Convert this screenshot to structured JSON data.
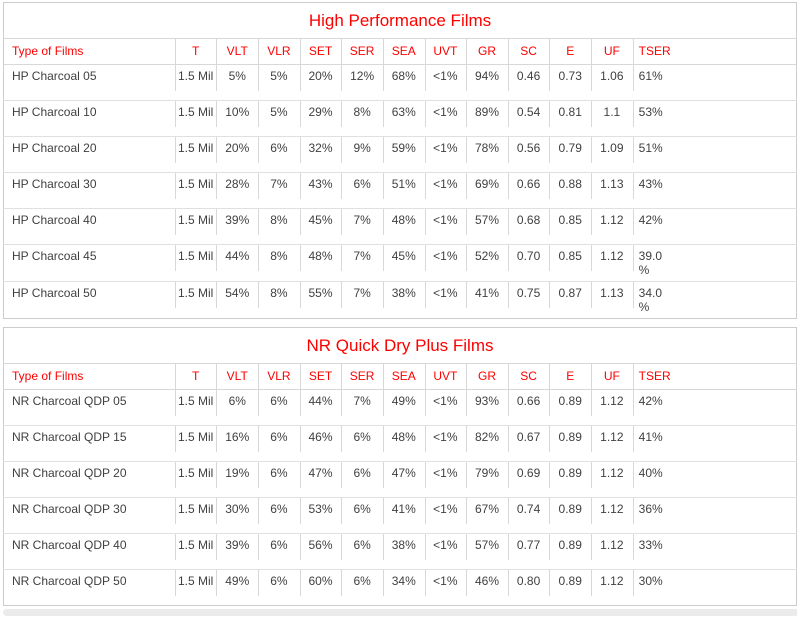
{
  "colors": {
    "accent_red": "#ff0000",
    "data_text": "#3f3f3f",
    "table_border": "#cccccc",
    "row_line": "#e0e0e0",
    "header_line": "#d8d8d8",
    "bottom_strip": "#ebebeb"
  },
  "tables": [
    {
      "title": "High Performance Films",
      "columns": [
        "Type of Films",
        "T",
        "VLT",
        "VLR",
        "SET",
        "SER",
        "SEA",
        "UVT",
        "GR",
        "SC",
        "E",
        "UF",
        "TSER"
      ],
      "rows": [
        [
          "HP Charcoal 05",
          "1.5 Mil",
          "5%",
          "5%",
          "20%",
          "12%",
          "68%",
          "<1%",
          "94%",
          "0.46",
          "0.73",
          "1.06",
          "61%"
        ],
        [
          "HP Charcoal 10",
          "1.5 Mil",
          "10%",
          "5%",
          "29%",
          "8%",
          "63%",
          "<1%",
          "89%",
          "0.54",
          "0.81",
          "1.1",
          "53%"
        ],
        [
          "HP Charcoal 20",
          "1.5 Mil",
          "20%",
          "6%",
          "32%",
          "9%",
          "59%",
          "<1%",
          "78%",
          "0.56",
          "0.79",
          "1.09",
          "51%"
        ],
        [
          "HP Charcoal 30",
          "1.5 Mil",
          "28%",
          "7%",
          "43%",
          "6%",
          "51%",
          "<1%",
          "69%",
          "0.66",
          "0.88",
          "1.13",
          "43%"
        ],
        [
          "HP Charcoal 40",
          "1.5 Mil",
          "39%",
          "8%",
          "45%",
          "7%",
          "48%",
          "<1%",
          "57%",
          "0.68",
          "0.85",
          "1.12",
          "42%"
        ],
        [
          "HP Charcoal 45",
          "1.5 Mil",
          "44%",
          "8%",
          "48%",
          "7%",
          "45%",
          "<1%",
          "52%",
          "0.70",
          "0.85",
          "1.12",
          "39.0\n%"
        ],
        [
          "HP Charcoal 50",
          "1.5 Mil",
          "54%",
          "8%",
          "55%",
          "7%",
          "38%",
          "<1%",
          "41%",
          "0.75",
          "0.87",
          "1.13",
          "34.0\n%"
        ]
      ]
    },
    {
      "title": "NR Quick Dry Plus Films",
      "columns": [
        "Type of Films",
        "T",
        "VLT",
        "VLR",
        "SET",
        "SER",
        "SEA",
        "UVT",
        "GR",
        "SC",
        "E",
        "UF",
        "TSER"
      ],
      "rows": [
        [
          "NR Charcoal QDP 05",
          "1.5 Mil",
          "6%",
          "6%",
          "44%",
          "7%",
          "49%",
          "<1%",
          "93%",
          "0.66",
          "0.89",
          "1.12",
          "42%"
        ],
        [
          "NR Charcoal QDP 15",
          "1.5 Mil",
          "16%",
          "6%",
          "46%",
          "6%",
          "48%",
          "<1%",
          "82%",
          "0.67",
          "0.89",
          "1.12",
          "41%"
        ],
        [
          "NR Charcoal QDP 20",
          "1.5 Mil",
          "19%",
          "6%",
          "47%",
          "6%",
          "47%",
          "<1%",
          "79%",
          "0.69",
          "0.89",
          "1.12",
          "40%"
        ],
        [
          "NR Charcoal QDP 30",
          "1.5 Mil",
          "30%",
          "6%",
          "53%",
          "6%",
          "41%",
          "<1%",
          "67%",
          "0.74",
          "0.89",
          "1.12",
          "36%"
        ],
        [
          "NR Charcoal QDP 40",
          "1.5 Mil",
          "39%",
          "6%",
          "56%",
          "6%",
          "38%",
          "<1%",
          "57%",
          "0.77",
          "0.89",
          "1.12",
          "33%"
        ],
        [
          "NR Charcoal QDP 50",
          "1.5 Mil",
          "49%",
          "6%",
          "60%",
          "6%",
          "34%",
          "<1%",
          "46%",
          "0.80",
          "0.89",
          "1.12",
          "30%"
        ]
      ]
    }
  ]
}
